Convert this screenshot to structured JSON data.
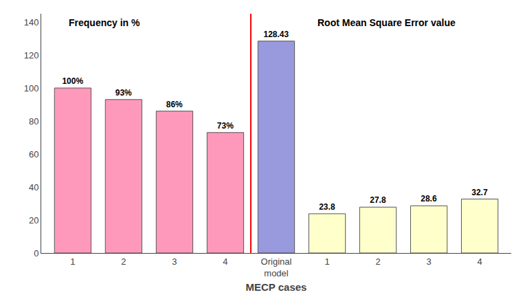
{
  "chart_data": {
    "type": "bar",
    "xlabel": "MECP cases",
    "categories": [
      "1",
      "2",
      "3",
      "4",
      "Original\nmodel",
      "1",
      "2",
      "3",
      "4"
    ],
    "values": [
      100,
      93,
      86,
      73,
      128.43,
      23.8,
      27.8,
      28.6,
      32.7
    ],
    "value_labels": [
      "100%",
      "93%",
      "86%",
      "73%",
      "128.43",
      "23.8",
      "27.8",
      "28.6",
      "32.7"
    ],
    "data_labels": true,
    "colors": [
      "#FF99BB",
      "#FF99BB",
      "#FF99BB",
      "#FF99BB",
      "#9999DD",
      "#FFFFCC",
      "#FFFFCC",
      "#FFFFCC",
      "#FFFFCC"
    ],
    "annotations": [
      "Frequency in %",
      "Root Mean Square Error value"
    ],
    "ylim": [
      0,
      145
    ],
    "yticks": [
      0,
      20,
      40,
      60,
      80,
      100,
      120,
      140
    ],
    "grid": false
  }
}
